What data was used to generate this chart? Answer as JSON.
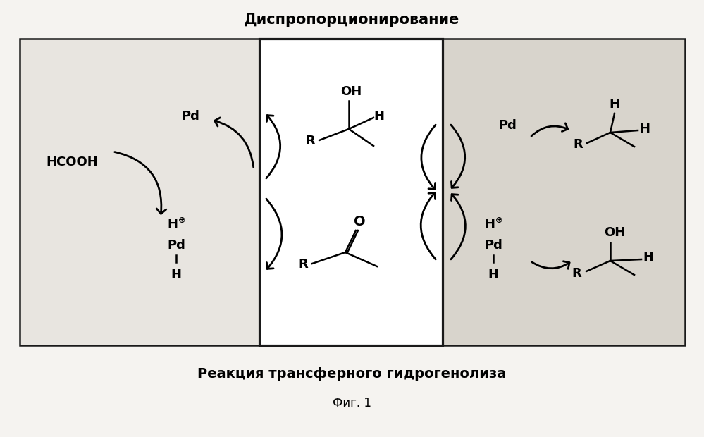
{
  "title_top": "Диспропорционирование",
  "title_bottom": "Реакция трансферного гидрогенолиза",
  "fig_label": "Фиг. 1",
  "bg_color": "#f5f3f0",
  "panel1_bg": "#e8e5e0",
  "panel2_bg": "#ffffff",
  "panel3_bg": "#e8e5e0",
  "border_color": "#1a1a1a",
  "text_color": "#000000",
  "figsize": [
    9.99,
    6.2
  ],
  "dpi": 100,
  "title_fontsize": 15,
  "body_fontsize": 13,
  "small_fontsize": 11,
  "fig_label_fontsize": 12
}
